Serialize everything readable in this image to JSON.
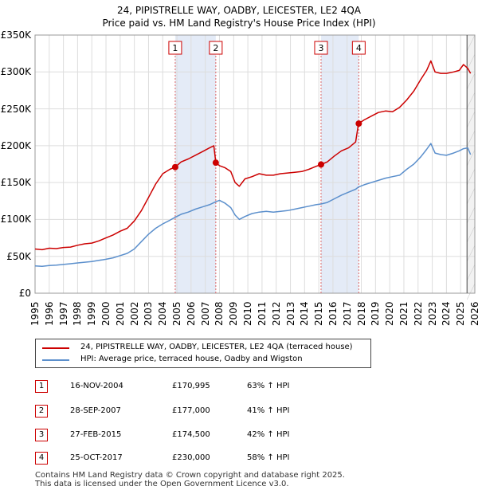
{
  "title_line1": "24, PIPISTRELLE WAY, OADBY, LEICESTER, LE2 4QA",
  "title_line2": "Price paid vs. HM Land Registry's House Price Index (HPI)",
  "chart_data": {
    "type": "line",
    "xlim": [
      1995,
      2026
    ],
    "ylim": [
      0,
      350000
    ],
    "yticks": [
      0,
      50000,
      100000,
      150000,
      200000,
      250000,
      300000,
      350000
    ],
    "yticklabels": [
      "£0",
      "£50K",
      "£100K",
      "£150K",
      "£200K",
      "£250K",
      "£300K",
      "£350K"
    ],
    "xticks": [
      1995,
      1996,
      1997,
      1998,
      1999,
      2000,
      2001,
      2002,
      2003,
      2004,
      2005,
      2006,
      2007,
      2008,
      2009,
      2010,
      2011,
      2012,
      2013,
      2014,
      2015,
      2016,
      2017,
      2018,
      2019,
      2020,
      2021,
      2022,
      2023,
      2024,
      2025,
      2026
    ],
    "series": [
      {
        "name": "24, PIPISTRELLE WAY, OADBY, LEICESTER, LE2 4QA (terraced house)",
        "color": "#cc0000",
        "x": [
          1995,
          1995.5,
          1996,
          1996.5,
          1997,
          1997.5,
          1998,
          1998.5,
          1999,
          1999.5,
          2000,
          2000.5,
          2001,
          2001.5,
          2002,
          2002.5,
          2003,
          2003.5,
          2004,
          2004.5,
          2004.88,
          2005.3,
          2005.8,
          2006.3,
          2006.8,
          2007.3,
          2007.6,
          2007.74,
          2008.0,
          2008.4,
          2008.8,
          2009.1,
          2009.4,
          2009.8,
          2010.3,
          2010.8,
          2011.3,
          2011.8,
          2012.3,
          2012.8,
          2013.3,
          2013.8,
          2014.3,
          2014.8,
          2015.16,
          2015.6,
          2016.1,
          2016.6,
          2017.1,
          2017.6,
          2017.8,
          2018.2,
          2018.7,
          2019.2,
          2019.7,
          2020.2,
          2020.7,
          2021.2,
          2021.7,
          2022.2,
          2022.6,
          2022.9,
          2023.2,
          2023.6,
          2024.0,
          2024.5,
          2024.9,
          2025.2,
          2025.5,
          2025.7
        ],
        "y": [
          60000,
          59000,
          61000,
          60500,
          62000,
          62500,
          65000,
          67000,
          68000,
          71000,
          75000,
          79000,
          84000,
          88000,
          98000,
          112000,
          130000,
          148000,
          162000,
          168000,
          170995,
          178000,
          182000,
          187000,
          192000,
          197000,
          200000,
          177000,
          173000,
          170000,
          165000,
          150000,
          145000,
          155000,
          158000,
          162000,
          160000,
          160000,
          162000,
          163000,
          164000,
          165000,
          168000,
          172000,
          174500,
          178000,
          186000,
          193000,
          197000,
          205000,
          230000,
          235000,
          240000,
          245000,
          247000,
          246000,
          252000,
          262000,
          274000,
          290000,
          302000,
          315000,
          300000,
          298000,
          298000,
          300000,
          302000,
          310000,
          305000,
          298000
        ]
      },
      {
        "name": "HPI: Average price, terraced house, Oadby and Wigston",
        "color": "#5b8fcc",
        "x": [
          1995,
          1995.5,
          1996,
          1996.5,
          1997,
          1997.5,
          1998,
          1998.5,
          1999,
          1999.5,
          2000,
          2000.5,
          2001,
          2001.5,
          2002,
          2002.5,
          2003,
          2003.5,
          2004,
          2004.5,
          2004.88,
          2005.3,
          2005.8,
          2006.3,
          2006.8,
          2007.3,
          2007.74,
          2008.0,
          2008.4,
          2008.8,
          2009.1,
          2009.4,
          2009.8,
          2010.3,
          2010.8,
          2011.3,
          2011.8,
          2012.3,
          2012.8,
          2013.3,
          2013.8,
          2014.3,
          2014.8,
          2015.16,
          2015.6,
          2016.1,
          2016.6,
          2017.1,
          2017.6,
          2017.8,
          2018.2,
          2018.7,
          2019.2,
          2019.7,
          2020.2,
          2020.7,
          2021.2,
          2021.7,
          2022.2,
          2022.6,
          2022.9,
          2023.2,
          2023.6,
          2024.0,
          2024.5,
          2024.9,
          2025.2,
          2025.5,
          2025.7
        ],
        "y": [
          37000,
          36500,
          37500,
          38000,
          39000,
          40000,
          41000,
          42000,
          43000,
          44500,
          46000,
          48000,
          51000,
          54000,
          60000,
          70000,
          80000,
          88000,
          94000,
          99000,
          103000,
          107000,
          110000,
          114000,
          117000,
          120000,
          124000,
          126000,
          122000,
          116000,
          106000,
          100000,
          104000,
          108000,
          110000,
          111000,
          110000,
          111000,
          112000,
          114000,
          116000,
          118000,
          120000,
          121000,
          123000,
          128000,
          133000,
          137000,
          141000,
          144000,
          147000,
          150000,
          153000,
          156000,
          158000,
          160000,
          168000,
          175000,
          185000,
          195000,
          203000,
          190000,
          188000,
          187000,
          190000,
          193000,
          196000,
          197000,
          188000
        ]
      }
    ],
    "sales": [
      {
        "id": "1",
        "year": 2004.88,
        "price": 170995
      },
      {
        "id": "2",
        "year": 2007.74,
        "price": 177000
      },
      {
        "id": "3",
        "year": 2015.16,
        "price": 174500
      },
      {
        "id": "4",
        "year": 2017.82,
        "price": 230000
      }
    ],
    "shaded_ranges": [
      [
        2004.88,
        2007.74
      ],
      [
        2015.16,
        2017.82
      ]
    ],
    "forecast_from": 2025.45
  },
  "legend": [
    {
      "label": "24, PIPISTRELLE WAY, OADBY, LEICESTER, LE2 4QA (terraced house)",
      "color": "#cc0000"
    },
    {
      "label": "HPI: Average price, terraced house, Oadby and Wigston",
      "color": "#5b8fcc"
    }
  ],
  "transactions": [
    {
      "num": "1",
      "date": "16-NOV-2004",
      "price": "£170,995",
      "hpi": "63% ↑ HPI"
    },
    {
      "num": "2",
      "date": "28-SEP-2007",
      "price": "£177,000",
      "hpi": "41% ↑ HPI"
    },
    {
      "num": "3",
      "date": "27-FEB-2015",
      "price": "£174,500",
      "hpi": "42% ↑ HPI"
    },
    {
      "num": "4",
      "date": "25-OCT-2017",
      "price": "£230,000",
      "hpi": "58% ↑ HPI"
    }
  ],
  "footer_line1": "Contains HM Land Registry data © Crown copyright and database right 2025.",
  "footer_line2": "This data is licensed under the Open Government Licence v3.0."
}
